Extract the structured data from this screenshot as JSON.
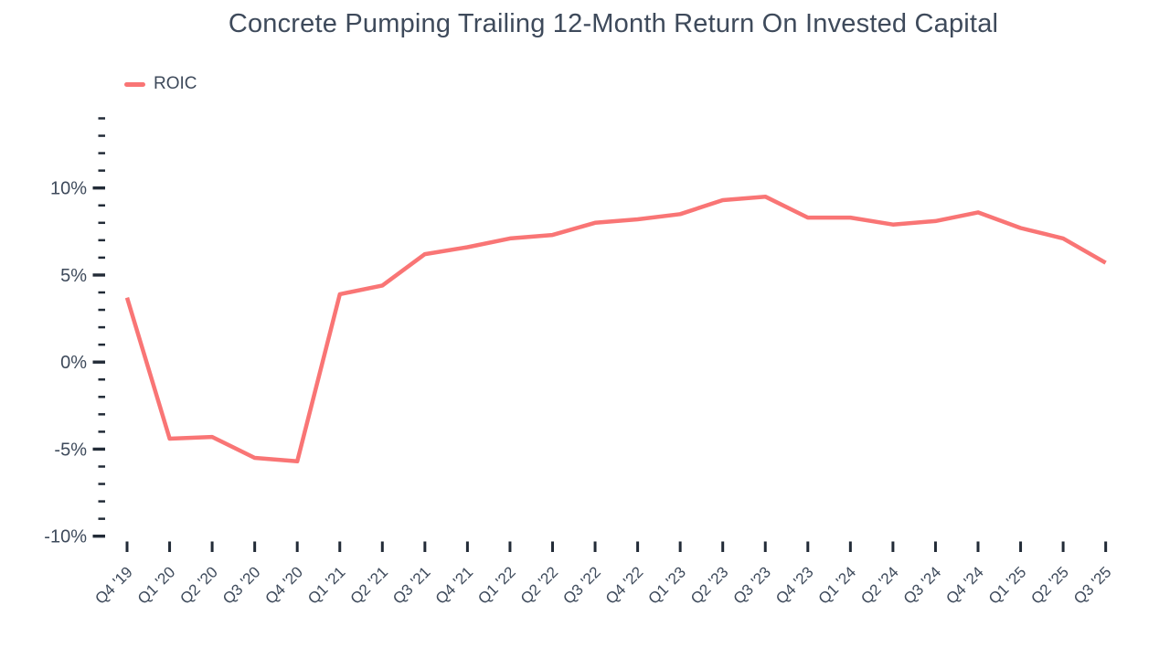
{
  "colors": {
    "accent": "#F97575",
    "text": "#3E4A5B",
    "tick": "#222B37",
    "background": "#FFFFFF"
  },
  "chart_data": {
    "type": "line",
    "title": "Concrete Pumping Trailing 12-Month Return On Invested Capital",
    "xlabel": "",
    "ylabel": "",
    "categories": [
      "Q4 '19",
      "Q1 '20",
      "Q2 '20",
      "Q3 '20",
      "Q4 '20",
      "Q1 '21",
      "Q2 '21",
      "Q3 '21",
      "Q4 '21",
      "Q1 '22",
      "Q2 '22",
      "Q3 '22",
      "Q4 '22",
      "Q1 '23",
      "Q2 '23",
      "Q3 '23",
      "Q4 '23",
      "Q1 '24",
      "Q2 '24",
      "Q3 '24",
      "Q4 '24",
      "Q1 '25",
      "Q2 '25",
      "Q3 '25"
    ],
    "series": [
      {
        "name": "ROIC",
        "values": [
          3.7,
          -4.4,
          -4.3,
          -5.5,
          -5.7,
          3.9,
          4.4,
          6.2,
          6.6,
          7.1,
          7.3,
          8.0,
          8.2,
          8.5,
          9.3,
          9.5,
          8.3,
          8.3,
          7.9,
          8.1,
          8.6,
          7.7,
          7.1,
          5.7
        ]
      }
    ],
    "unit": "%",
    "ylim": [
      -10,
      14
    ],
    "y_ticks": [
      -10,
      -5,
      0,
      5,
      10
    ],
    "y_tick_labels": [
      "-10%",
      "-5%",
      "0%",
      "5%",
      "10%"
    ],
    "y_minor_step": 1,
    "grid": false,
    "legend_position": "top-left"
  }
}
